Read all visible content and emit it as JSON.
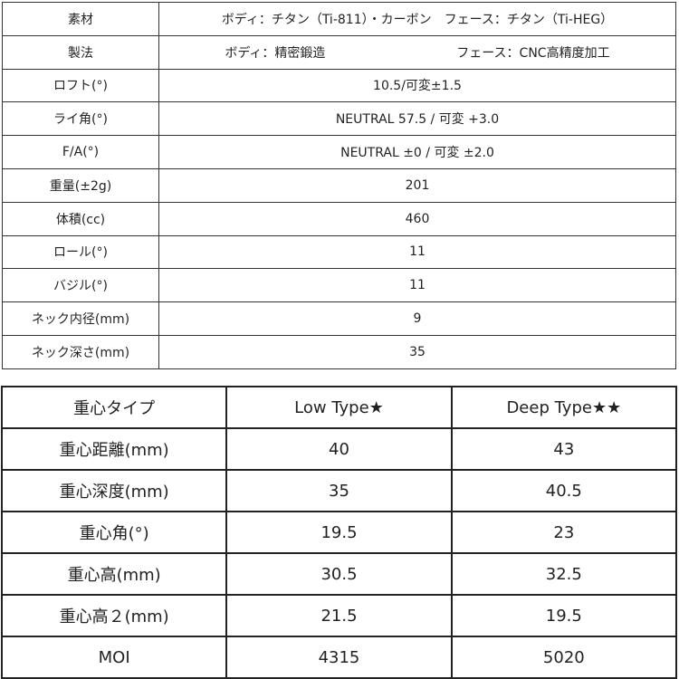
{
  "spec": [
    {
      "label": "素材",
      "value": "ボディ：チタン（Ti-811）・カーボン　フェース：チタン（Ti-HEG）"
    },
    {
      "label": "製法",
      "value_left": "ボディ：精密鍛造",
      "value_right": "フェース：CNC高精度加工"
    },
    {
      "label": "ロフト(°)",
      "value": "10.5/可変±1.5"
    },
    {
      "label": "ライ角(°)",
      "value": "NEUTRAL 57.5 / 可変 +3.0"
    },
    {
      "label": "F/A(°)",
      "value": "NEUTRAL ±0 / 可変 ±2.0"
    },
    {
      "label": "重量(±2g)",
      "value": "201"
    },
    {
      "label": "体積(cc)",
      "value": "460"
    },
    {
      "label": "ロール(°)",
      "value": "11"
    },
    {
      "label": "バジル(°)",
      "value": "11"
    },
    {
      "label": "ネック内径(mm)",
      "value": "9"
    },
    {
      "label": "ネック深さ(mm)",
      "value": "35"
    }
  ],
  "cg": {
    "headers": [
      "重心タイプ",
      "Low Type★",
      "Deep Type★★"
    ],
    "rows": [
      [
        "重心距離(mm)",
        "40",
        "43"
      ],
      [
        "重心深度(mm)",
        "35",
        "40.5"
      ],
      [
        "重心角(°)",
        "19.5",
        "23"
      ],
      [
        "重心高(mm)",
        "30.5",
        "32.5"
      ],
      [
        "重心高２(mm)",
        "21.5",
        "19.5"
      ],
      [
        "MOI",
        "4315",
        "5020"
      ]
    ]
  }
}
